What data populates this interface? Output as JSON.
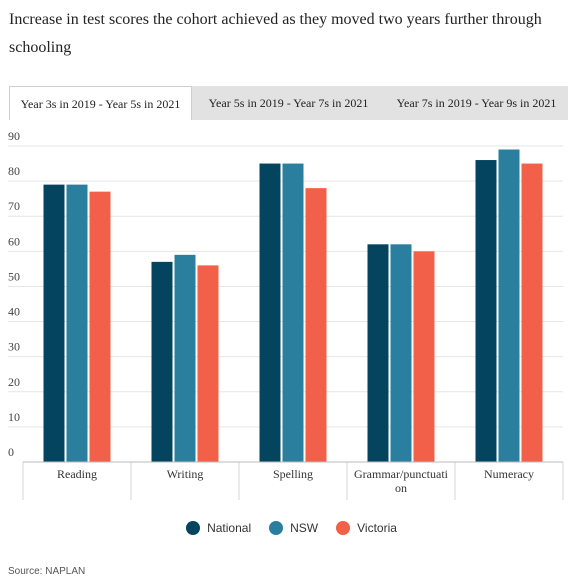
{
  "title": "Increase in test scores the cohort achieved as they moved two years further through schooling",
  "tabs": [
    {
      "label": "Year 3s in 2019 - Year 5s in 2021",
      "active": true
    },
    {
      "label": "Year 5s in 2019 - Year 7s in 2021",
      "active": false
    },
    {
      "label": "Year 7s in 2019 - Year 9s in 2021",
      "active": false
    }
  ],
  "source": "Source: NAPLAN",
  "colors": {
    "National": "#05445e",
    "NSW": "#2a7f9e",
    "Victoria": "#f2604a"
  },
  "chart_data": {
    "type": "bar",
    "categories": [
      "Reading",
      "Writing",
      "Spelling",
      "Grammar/punctuation",
      "Numeracy"
    ],
    "category_labels": [
      [
        "Reading"
      ],
      [
        "Writing"
      ],
      [
        "Spelling"
      ],
      [
        "Grammar/punctuati",
        "on"
      ],
      [
        "Numeracy"
      ]
    ],
    "series": [
      {
        "name": "National",
        "values": [
          79,
          57,
          85,
          62,
          86
        ]
      },
      {
        "name": "NSW",
        "values": [
          79,
          59,
          85,
          62,
          89
        ]
      },
      {
        "name": "Victoria",
        "values": [
          77,
          56,
          78,
          60,
          85
        ]
      }
    ],
    "ylim": [
      0,
      90
    ],
    "yticks": [
      0,
      10,
      20,
      30,
      40,
      50,
      60,
      70,
      80,
      90
    ],
    "grid": true,
    "legend": "bottom",
    "xlabel": "",
    "ylabel": ""
  }
}
